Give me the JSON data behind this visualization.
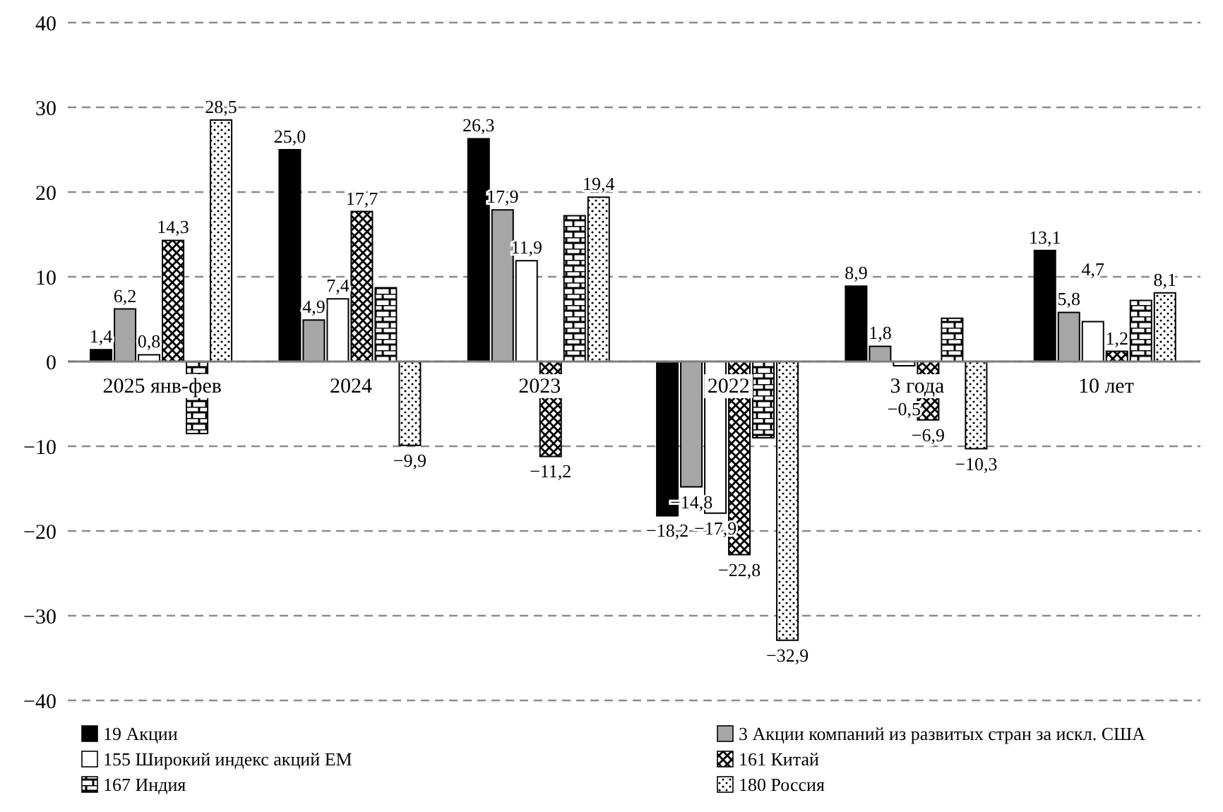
{
  "chart_data": {
    "type": "bar",
    "categories": [
      "2025 янв-фев",
      "2024",
      "2023",
      "2022",
      "3 года",
      "10 лет"
    ],
    "series": [
      {
        "name": "19 Акции",
        "color": "#000000",
        "values": [
          1.4,
          25.0,
          26.3,
          -18.2,
          8.9,
          13.1
        ],
        "value_labels": [
          "1,4",
          "25,0",
          "26,3",
          "−18,2",
          "8,9",
          "13,1"
        ]
      },
      {
        "name": "3 Акции компаний из развитых стран за искл. США",
        "color": "#a6a6a6",
        "values": [
          6.2,
          4.9,
          17.9,
          -14.8,
          1.8,
          5.8
        ],
        "value_labels": [
          "6,2",
          "4,9",
          "17,9",
          "−14,8",
          "1,8",
          "5,8"
        ]
      },
      {
        "name": "155 Широкий индекс акций EM",
        "color": "#ffffff",
        "values": [
          0.8,
          7.4,
          11.9,
          -17.9,
          -0.5,
          4.7
        ],
        "value_labels": [
          "0,8",
          "7,4",
          "11,9",
          "−17,9",
          "−0,5",
          "4,7"
        ]
      },
      {
        "name": "161 Китай",
        "color": "#000000",
        "values": [
          14.3,
          17.7,
          -11.2,
          -22.8,
          -6.9,
          1.2
        ],
        "value_labels": [
          "14,3",
          "17,7",
          "−11,2",
          "−22,8",
          "−6,9",
          "1,2"
        ]
      },
      {
        "name": "167 Индия",
        "color": "#000000",
        "values": [
          -8.5,
          8.7,
          17.2,
          -9.0,
          5.1,
          7.2
        ]
      },
      {
        "name": "180 Россия",
        "color": "#000000",
        "values": [
          28.5,
          -9.9,
          19.4,
          -32.9,
          -10.3,
          8.1
        ],
        "value_labels": [
          "28,5",
          "−9,9",
          "19,4",
          "−32,9",
          "−10,3",
          "8,1"
        ]
      }
    ],
    "ylim": [
      -40,
      40
    ],
    "yticks": [
      -40,
      -30,
      -20,
      -10,
      0,
      10,
      20,
      30,
      40
    ],
    "grid": "y",
    "legend": "bottom"
  }
}
